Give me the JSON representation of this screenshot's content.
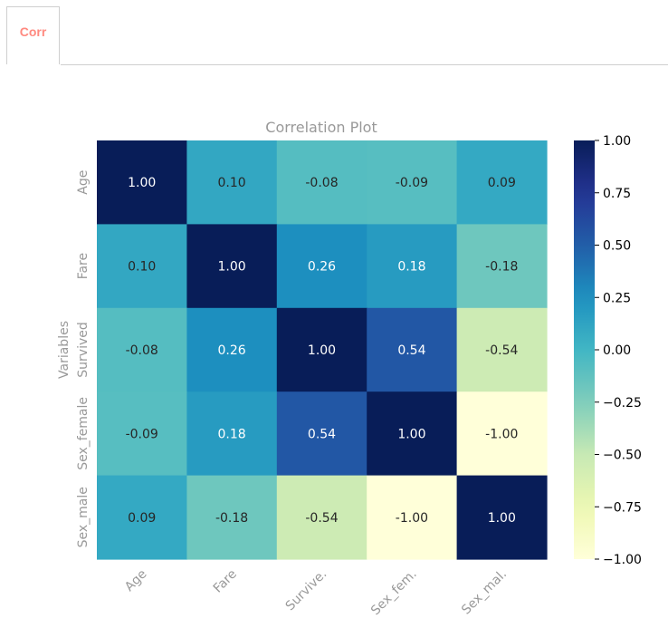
{
  "tabs": [
    {
      "label": "Corr"
    }
  ],
  "chart_data": {
    "type": "heatmap",
    "title": "Correlation Plot",
    "ylabel": "Variables",
    "xlabel": "",
    "row_labels": [
      "Age",
      "Fare",
      "Survived",
      "Sex_female",
      "Sex_male"
    ],
    "col_labels": [
      "Age",
      "Fare",
      "Survive.",
      "Sex_fem.",
      "Sex_mal."
    ],
    "values": [
      [
        1.0,
        0.1,
        -0.08,
        -0.09,
        0.09
      ],
      [
        0.1,
        1.0,
        0.26,
        0.18,
        -0.18
      ],
      [
        -0.08,
        0.26,
        1.0,
        0.54,
        -0.54
      ],
      [
        -0.09,
        0.18,
        0.54,
        1.0,
        -1.0
      ],
      [
        0.09,
        -0.18,
        -0.54,
        -1.0,
        1.0
      ]
    ],
    "annotation_format": "0.00",
    "colormap": "YlGnBu",
    "vmin": -1.0,
    "vmax": 1.0,
    "colorbar_ticks": [
      1.0,
      0.75,
      0.5,
      0.25,
      0.0,
      -0.25,
      -0.5,
      -0.75,
      -1.0
    ],
    "colorbar_tick_labels": [
      "1.00",
      "0.75",
      "0.50",
      "0.25",
      "0.00",
      "−0.25",
      "−0.50",
      "−0.75",
      "−1.00"
    ],
    "colors": {
      "label_text": "#999999",
      "tick_text": "#000000"
    }
  }
}
